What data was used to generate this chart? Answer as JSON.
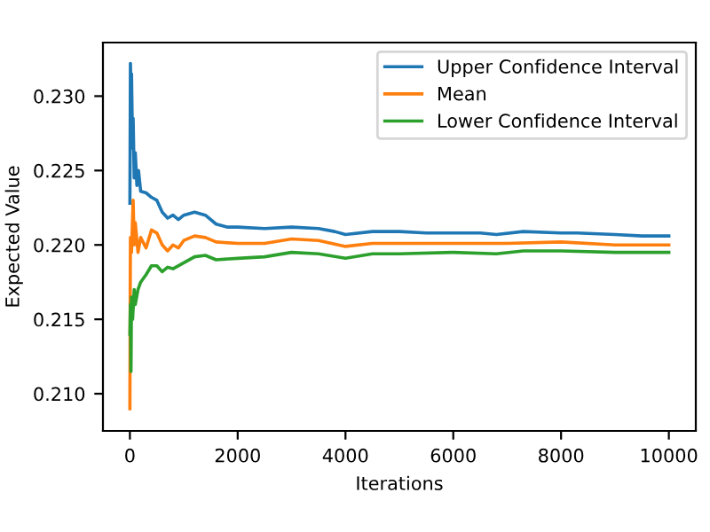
{
  "chart_data": {
    "type": "line",
    "xlabel": "Iterations",
    "ylabel": "Expected Value",
    "xlim": [
      -500,
      10500
    ],
    "ylim": [
      0.2075,
      0.2336
    ],
    "xticks": [
      0,
      2000,
      4000,
      6000,
      8000,
      10000
    ],
    "yticks": [
      {
        "value": 0.21,
        "label": "0.210"
      },
      {
        "value": 0.215,
        "label": "0.215"
      },
      {
        "value": 0.22,
        "label": "0.220"
      },
      {
        "value": 0.225,
        "label": "0.225"
      },
      {
        "value": 0.23,
        "label": "0.230"
      }
    ],
    "legend": "top right",
    "grid": false,
    "series": [
      {
        "name": "Upper Confidence Interval",
        "color": "#1f77b4",
        "x": [
          0,
          10,
          20,
          30,
          50,
          60,
          80,
          100,
          130,
          160,
          200,
          300,
          400,
          500,
          600,
          700,
          800,
          900,
          1000,
          1200,
          1400,
          1600,
          1800,
          2000,
          2500,
          3000,
          3500,
          3800,
          4000,
          4500,
          5000,
          5500,
          6000,
          6500,
          6800,
          7300,
          8000,
          8300,
          9000,
          9500,
          10000
        ],
        "values": [
          0.2228,
          0.2322,
          0.23,
          0.2315,
          0.2265,
          0.2285,
          0.2245,
          0.2262,
          0.224,
          0.225,
          0.2236,
          0.2235,
          0.2232,
          0.223,
          0.2222,
          0.2218,
          0.222,
          0.2217,
          0.222,
          0.2222,
          0.222,
          0.2214,
          0.2212,
          0.2212,
          0.2211,
          0.2212,
          0.2211,
          0.2209,
          0.2207,
          0.2209,
          0.2209,
          0.2208,
          0.2208,
          0.2208,
          0.2207,
          0.2209,
          0.2208,
          0.2208,
          0.2207,
          0.2206,
          0.2206
        ]
      },
      {
        "name": "Mean",
        "color": "#ff7f0e",
        "x": [
          0,
          5,
          10,
          30,
          60,
          80,
          100,
          150,
          200,
          300,
          400,
          500,
          600,
          700,
          800,
          900,
          1000,
          1200,
          1400,
          1600,
          2000,
          2500,
          3000,
          3500,
          4000,
          4500,
          5000,
          6000,
          7000,
          8000,
          9000,
          10000
        ],
        "values": [
          0.209,
          0.216,
          0.2205,
          0.2195,
          0.223,
          0.22,
          0.2215,
          0.2195,
          0.2205,
          0.2198,
          0.221,
          0.2208,
          0.22,
          0.2196,
          0.22,
          0.2198,
          0.2203,
          0.2206,
          0.2205,
          0.2202,
          0.2201,
          0.2201,
          0.2204,
          0.2203,
          0.2199,
          0.2201,
          0.2201,
          0.2201,
          0.2201,
          0.2202,
          0.22,
          0.22
        ]
      },
      {
        "name": "Lower Confidence Interval",
        "color": "#2ca02c",
        "x": [
          0,
          10,
          20,
          30,
          50,
          80,
          100,
          150,
          200,
          300,
          400,
          500,
          600,
          700,
          800,
          1000,
          1200,
          1400,
          1600,
          2000,
          2500,
          3000,
          3500,
          4000,
          4500,
          5000,
          6000,
          6800,
          7300,
          8000,
          9000,
          10000
        ],
        "values": [
          0.214,
          0.216,
          0.2115,
          0.2165,
          0.215,
          0.217,
          0.216,
          0.217,
          0.2175,
          0.218,
          0.2186,
          0.2186,
          0.2182,
          0.2185,
          0.2184,
          0.2188,
          0.2192,
          0.2193,
          0.219,
          0.2191,
          0.2192,
          0.2195,
          0.2194,
          0.2191,
          0.2194,
          0.2194,
          0.2195,
          0.2194,
          0.2196,
          0.2196,
          0.2195,
          0.2195
        ]
      }
    ]
  }
}
